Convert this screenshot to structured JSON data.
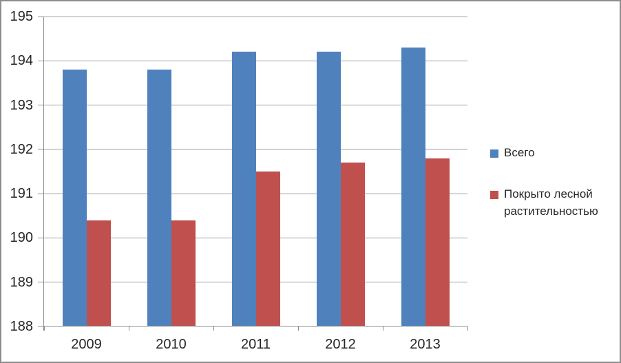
{
  "chart_data": {
    "type": "bar",
    "title": "",
    "xlabel": "",
    "ylabel": "",
    "categories": [
      "2009",
      "2010",
      "2011",
      "2012",
      "2013"
    ],
    "series": [
      {
        "name": "Всего",
        "color": "#4F81BD",
        "values": [
          193.8,
          193.8,
          194.2,
          194.2,
          194.3
        ]
      },
      {
        "name": "Покрыто лесной растительностью",
        "color": "#C0504D",
        "values": [
          190.4,
          190.4,
          191.5,
          191.7,
          191.8
        ]
      }
    ],
    "ylim": [
      188,
      195
    ],
    "ytick_step": 1,
    "yticks": [
      188,
      189,
      190,
      191,
      192,
      193,
      194,
      195
    ],
    "grid": true,
    "legend_position": "right"
  },
  "style": {
    "series_blue": "#4F81BD",
    "series_red": "#C0504D",
    "gridline_color": "#9C9C9C",
    "axis_color": "#8C8C8C",
    "border_color": "#8C8C8C",
    "text_color": "#262626",
    "background_color": "#FFFFFF"
  }
}
